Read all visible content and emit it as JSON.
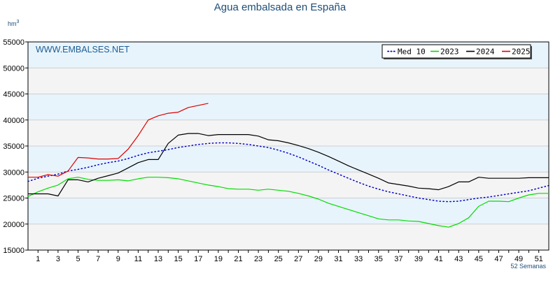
{
  "chart_data": {
    "type": "line",
    "title": "Agua embalsada en España",
    "y_unit": "hm",
    "y_unit_exp": "3",
    "watermark": "WWW.EMBALSES.NET",
    "x_unit_label": "52 Semanas",
    "xlim": [
      0,
      52
    ],
    "ylim": [
      15000,
      55000
    ],
    "y_ticks": [
      15000,
      20000,
      25000,
      30000,
      35000,
      40000,
      45000,
      50000,
      55000
    ],
    "x_ticks": [
      1,
      3,
      5,
      7,
      9,
      11,
      13,
      15,
      17,
      19,
      21,
      23,
      25,
      27,
      29,
      31,
      33,
      35,
      37,
      39,
      41,
      43,
      45,
      47,
      49,
      51
    ],
    "grid": true,
    "legend_position": "top-right",
    "series": [
      {
        "name": "Med 10",
        "color": "#0000cc",
        "style": "dotted",
        "x": [
          0,
          1,
          2,
          3,
          4,
          5,
          6,
          7,
          8,
          9,
          10,
          11,
          12,
          13,
          14,
          15,
          16,
          17,
          18,
          19,
          20,
          21,
          22,
          23,
          24,
          25,
          26,
          27,
          28,
          29,
          30,
          31,
          32,
          33,
          34,
          35,
          36,
          37,
          38,
          39,
          40,
          41,
          42,
          43,
          44,
          45,
          46,
          47,
          48,
          49,
          50,
          51,
          52
        ],
        "y": [
          28200,
          28800,
          29200,
          29600,
          30200,
          30500,
          30900,
          31400,
          31800,
          32100,
          32600,
          33200,
          33700,
          34000,
          34300,
          34700,
          35000,
          35300,
          35500,
          35600,
          35600,
          35500,
          35300,
          35000,
          34700,
          34200,
          33600,
          32900,
          32100,
          31300,
          30400,
          29600,
          28800,
          28000,
          27300,
          26700,
          26200,
          25800,
          25400,
          25000,
          24700,
          24400,
          24300,
          24400,
          24700,
          25000,
          25200,
          25500,
          25800,
          26100,
          26400,
          26900,
          27400
        ]
      },
      {
        "name": "2023",
        "color": "#00dd00",
        "style": "solid",
        "x": [
          0,
          1,
          2,
          3,
          4,
          5,
          6,
          7,
          8,
          9,
          10,
          11,
          12,
          13,
          14,
          15,
          16,
          17,
          18,
          19,
          20,
          21,
          22,
          23,
          24,
          25,
          26,
          27,
          28,
          29,
          30,
          31,
          32,
          33,
          34,
          35,
          36,
          37,
          38,
          39,
          40,
          41,
          42,
          43,
          44,
          45,
          46,
          47,
          48,
          49,
          50,
          51,
          52
        ],
        "y": [
          25300,
          26200,
          26900,
          27500,
          28700,
          29000,
          28600,
          28400,
          28400,
          28500,
          28300,
          28700,
          29000,
          29000,
          28900,
          28700,
          28300,
          27900,
          27500,
          27200,
          26800,
          26700,
          26700,
          26500,
          26700,
          26500,
          26300,
          25900,
          25400,
          24800,
          24000,
          23400,
          22800,
          22200,
          21600,
          21000,
          20800,
          20800,
          20600,
          20500,
          20100,
          19700,
          19400,
          20100,
          21200,
          23400,
          24400,
          24400,
          24300,
          25000,
          25600,
          25900,
          25900
        ]
      },
      {
        "name": "2024",
        "color": "#000000",
        "style": "solid",
        "x": [
          0,
          1,
          2,
          3,
          4,
          5,
          6,
          7,
          8,
          9,
          10,
          11,
          12,
          13,
          14,
          15,
          16,
          17,
          18,
          19,
          20,
          21,
          22,
          23,
          24,
          25,
          26,
          27,
          28,
          29,
          30,
          31,
          32,
          33,
          34,
          35,
          36,
          37,
          38,
          39,
          40,
          41,
          42,
          43,
          44,
          45,
          46,
          47,
          48,
          49,
          50,
          51,
          52
        ],
        "y": [
          25800,
          25800,
          25800,
          25400,
          28500,
          28500,
          28100,
          28800,
          29300,
          29800,
          30800,
          31800,
          32400,
          32400,
          35500,
          37100,
          37400,
          37400,
          37000,
          37200,
          37200,
          37200,
          37200,
          36900,
          36200,
          36000,
          35600,
          35100,
          34500,
          33800,
          33000,
          32100,
          31200,
          30400,
          29600,
          28800,
          27900,
          27600,
          27300,
          26900,
          26800,
          26600,
          27200,
          28100,
          28100,
          29000,
          28800,
          28800,
          28800,
          28800,
          28900,
          28900,
          28900
        ]
      },
      {
        "name": "2025",
        "color": "#dd0000",
        "style": "solid",
        "x": [
          0,
          1,
          2,
          3,
          4,
          5,
          6,
          7,
          8,
          9,
          10,
          11,
          12,
          13,
          14,
          15,
          16,
          17,
          18
        ],
        "y": [
          29000,
          29000,
          29500,
          29200,
          30200,
          32800,
          32700,
          32500,
          32500,
          32600,
          34400,
          37000,
          40000,
          40800,
          41300,
          41500,
          42400,
          42800,
          43200
        ]
      }
    ]
  }
}
